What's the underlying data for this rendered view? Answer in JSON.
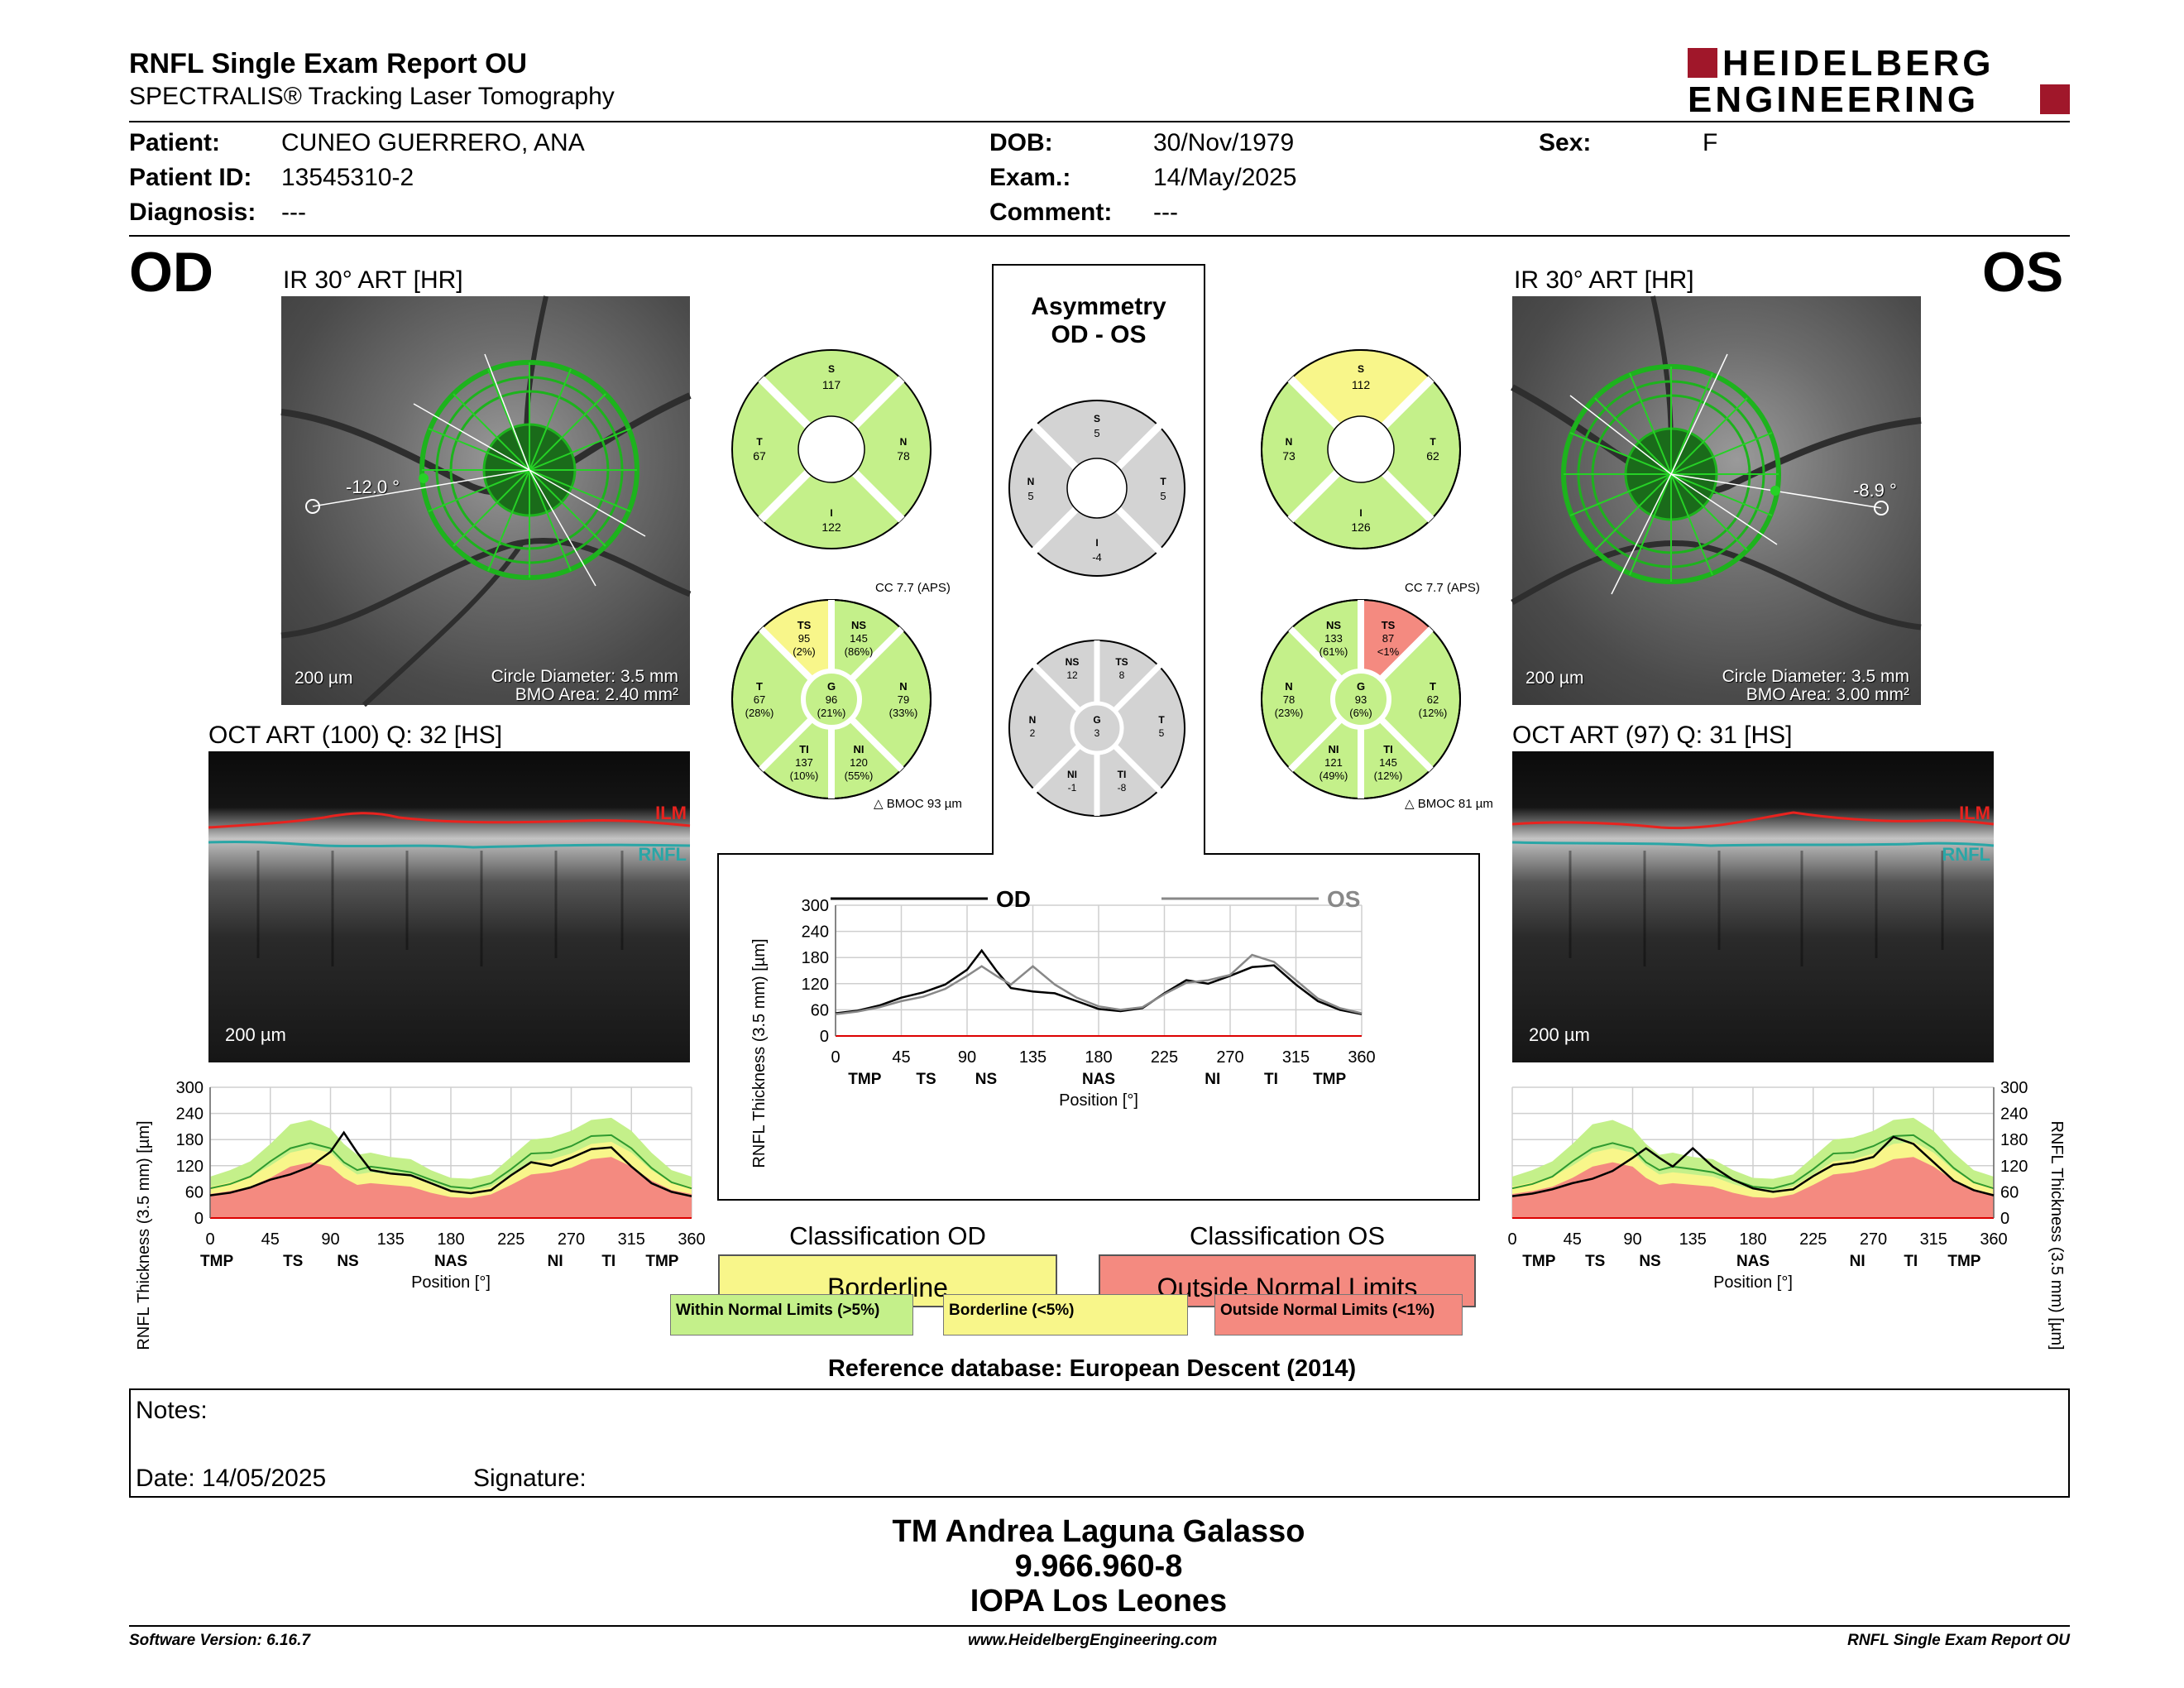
{
  "header": {
    "title": "RNFL Single Exam Report OU",
    "subtitle": "SPECTRALIS® Tracking Laser Tomography",
    "logo_line1": "HEIDELBERG",
    "logo_line2": "ENGINEERING"
  },
  "patient": {
    "patient_label": "Patient:",
    "patient_value": "CUNEO GUERRERO, ANA",
    "id_label": "Patient ID:",
    "id_value": "13545310-2",
    "diag_label": "Diagnosis:",
    "diag_value": "---",
    "dob_label": "DOB:",
    "dob_value": "30/Nov/1979",
    "exam_label": "Exam.:",
    "exam_value": "14/May/2025",
    "comment_label": "Comment:",
    "comment_value": "---",
    "sex_label": "Sex:",
    "sex_value": "F"
  },
  "od": {
    "tag": "OD",
    "ir_title": "IR 30° ART [HR]",
    "angle": "-12.0 °",
    "scale": "200 µm",
    "circle_diameter": "Circle Diameter: 3.5 mm",
    "bmo_area": "BMO Area: 2.40 mm²",
    "oct_title": "OCT ART (100) Q: 32 [HS]",
    "oct_scale": "200 µm",
    "ilm": "ILM",
    "rnfl": "RNFL",
    "sectors4": {
      "S": "117",
      "T": "67",
      "N": "78",
      "I": "122"
    },
    "cc": "CC 7.7 (APS)",
    "bmoc": "BMOC 93 µm",
    "sectors6": {
      "TS": [
        "TS",
        "95",
        "(2%)"
      ],
      "NS": [
        "NS",
        "145",
        "(86%)"
      ],
      "T": [
        "T",
        "67",
        "(28%)"
      ],
      "G": [
        "G",
        "96",
        "(21%)"
      ],
      "N": [
        "N",
        "79",
        "(33%)"
      ],
      "TI": [
        "TI",
        "137",
        "(10%)"
      ],
      "NI": [
        "NI",
        "120",
        "(55%)"
      ]
    },
    "classification_title": "Classification OD",
    "classification": "Borderline"
  },
  "os": {
    "tag": "OS",
    "ir_title": "IR 30° ART [HR]",
    "angle": "-8.9 °",
    "scale": "200 µm",
    "circle_diameter": "Circle Diameter: 3.5 mm",
    "bmo_area": "BMO Area: 3.00 mm²",
    "oct_title": "OCT ART (97) Q: 31 [HS]",
    "oct_scale": "200 µm",
    "ilm": "ILM",
    "rnfl": "RNFL",
    "sectors4": {
      "S": "112",
      "N": "73",
      "T": "62",
      "I": "126"
    },
    "cc": "CC 7.7 (APS)",
    "bmoc": "BMOC 81 µm",
    "sectors6": {
      "NS": [
        "NS",
        "133",
        "(61%)"
      ],
      "TS": [
        "TS",
        "87",
        "<1%"
      ],
      "N": [
        "N",
        "78",
        "(23%)"
      ],
      "G": [
        "G",
        "93",
        "(6%)"
      ],
      "T": [
        "T",
        "62",
        "(12%)"
      ],
      "NI": [
        "NI",
        "121",
        "(49%)"
      ],
      "TI": [
        "TI",
        "145",
        "(12%)"
      ]
    },
    "classification_title": "Classification OS",
    "classification": "Outside Normal Limits"
  },
  "asymmetry": {
    "title1": "Asymmetry",
    "title2": "OD - OS",
    "sectors4": {
      "S": "5",
      "N": "5",
      "T": "5",
      "I": "-4"
    },
    "sectors6": {
      "NS": [
        "NS",
        "12"
      ],
      "TS": [
        "TS",
        "8"
      ],
      "N": [
        "N",
        "2"
      ],
      "G": [
        "G",
        "3"
      ],
      "T": [
        "T",
        "5"
      ],
      "NI": [
        "NI",
        "-1"
      ],
      "TI": [
        "TI",
        "-8"
      ]
    }
  },
  "chart_data": [
    {
      "type": "line",
      "name": "od-profile",
      "title": "",
      "xlabel": "Position [°]",
      "ylabel": "RNFL Thickness (3.5 mm) [µm]",
      "xlim": [
        0,
        360
      ],
      "ylim": [
        0,
        300
      ],
      "xticks": [
        "0",
        "45",
        "90",
        "135",
        "180",
        "225",
        "270",
        "315",
        "360"
      ],
      "yticks": [
        "0",
        "60",
        "120",
        "180",
        "240",
        "300"
      ],
      "sector_labels": [
        "TMP",
        "TS",
        "NS",
        "NAS",
        "NI",
        "TI",
        "TMP"
      ],
      "sector_positions": [
        5,
        62,
        103,
        180,
        258,
        298,
        338
      ],
      "x": [
        0,
        15,
        30,
        45,
        60,
        75,
        90,
        100,
        110,
        120,
        135,
        150,
        165,
        180,
        195,
        210,
        225,
        240,
        255,
        270,
        285,
        300,
        315,
        330,
        345,
        360
      ],
      "series": [
        {
          "name": "OD",
          "values": [
            52,
            58,
            70,
            88,
            100,
            118,
            152,
            196,
            150,
            110,
            102,
            98,
            80,
            62,
            57,
            64,
            98,
            128,
            120,
            138,
            158,
            162,
            118,
            80,
            60,
            50
          ]
        }
      ],
      "band_green_upper": [
        95,
        110,
        130,
        170,
        215,
        225,
        205,
        170,
        145,
        150,
        140,
        135,
        110,
        92,
        90,
        100,
        140,
        180,
        185,
        200,
        225,
        230,
        200,
        150,
        110,
        95
      ],
      "band_yellow_upper": [
        72,
        82,
        95,
        120,
        150,
        160,
        150,
        120,
        100,
        105,
        100,
        95,
        78,
        65,
        62,
        72,
        100,
        130,
        135,
        148,
        170,
        175,
        150,
        110,
        82,
        72
      ],
      "band_red_upper": [
        55,
        62,
        72,
        92,
        118,
        128,
        118,
        92,
        76,
        80,
        76,
        72,
        58,
        48,
        46,
        54,
        76,
        100,
        105,
        115,
        135,
        140,
        118,
        86,
        64,
        55
      ],
      "mean_line": [
        68,
        78,
        95,
        130,
        160,
        172,
        160,
        128,
        110,
        118,
        112,
        105,
        88,
        72,
        68,
        80,
        112,
        148,
        150,
        165,
        188,
        190,
        160,
        115,
        82,
        68
      ]
    },
    {
      "type": "line",
      "name": "asymmetry-profile",
      "title": "",
      "xlabel": "Position [°]",
      "ylabel": "RNFL Thickness (3.5 mm) [µm]",
      "xlim": [
        0,
        360
      ],
      "ylim": [
        0,
        300
      ],
      "xticks": [
        "0",
        "45",
        "90",
        "135",
        "180",
        "225",
        "270",
        "315",
        "360"
      ],
      "yticks": [
        "0",
        "60",
        "120",
        "180",
        "240",
        "300"
      ],
      "sector_labels": [
        "TMP",
        "TS",
        "NS",
        "NAS",
        "NI",
        "TI",
        "TMP"
      ],
      "sector_positions": [
        20,
        62,
        103,
        180,
        258,
        298,
        338
      ],
      "x": [
        0,
        15,
        30,
        45,
        60,
        75,
        90,
        100,
        110,
        120,
        135,
        150,
        165,
        180,
        195,
        210,
        225,
        240,
        255,
        270,
        285,
        300,
        315,
        330,
        345,
        360
      ],
      "series": [
        {
          "name": "OD",
          "values": [
            52,
            58,
            70,
            88,
            100,
            118,
            152,
            196,
            150,
            110,
            102,
            98,
            80,
            62,
            57,
            64,
            98,
            128,
            120,
            138,
            158,
            162,
            118,
            80,
            60,
            50
          ]
        },
        {
          "name": "OS",
          "values": [
            50,
            56,
            66,
            80,
            90,
            108,
            138,
            160,
            138,
            118,
            160,
            118,
            88,
            68,
            60,
            66,
            96,
            122,
            128,
            140,
            186,
            170,
            128,
            86,
            64,
            52
          ]
        }
      ]
    },
    {
      "type": "line",
      "name": "os-profile",
      "title": "",
      "xlabel": "Position [°]",
      "ylabel": "RNFL Thickness (3.5 mm) [µm]",
      "xlim": [
        0,
        360
      ],
      "ylim": [
        0,
        300
      ],
      "xticks": [
        "0",
        "45",
        "90",
        "135",
        "180",
        "225",
        "270",
        "315",
        "360"
      ],
      "yticks": [
        "0",
        "60",
        "120",
        "180",
        "240",
        "300"
      ],
      "sector_labels": [
        "TMP",
        "TS",
        "NS",
        "NAS",
        "NI",
        "TI",
        "TMP"
      ],
      "sector_positions": [
        20,
        62,
        103,
        180,
        258,
        298,
        338
      ],
      "x": [
        0,
        15,
        30,
        45,
        60,
        75,
        90,
        100,
        110,
        120,
        135,
        150,
        165,
        180,
        195,
        210,
        225,
        240,
        255,
        270,
        285,
        300,
        315,
        330,
        345,
        360
      ],
      "series": [
        {
          "name": "OS",
          "values": [
            50,
            56,
            66,
            80,
            90,
            108,
            138,
            160,
            138,
            118,
            160,
            118,
            88,
            68,
            60,
            66,
            96,
            122,
            128,
            140,
            186,
            170,
            128,
            86,
            64,
            52
          ]
        }
      ],
      "band_green_upper": [
        95,
        110,
        130,
        170,
        215,
        225,
        205,
        170,
        145,
        150,
        140,
        135,
        110,
        92,
        90,
        100,
        140,
        180,
        185,
        200,
        225,
        230,
        200,
        150,
        110,
        95
      ],
      "band_yellow_upper": [
        72,
        82,
        95,
        120,
        150,
        160,
        150,
        120,
        100,
        105,
        100,
        95,
        78,
        65,
        62,
        72,
        100,
        130,
        135,
        148,
        170,
        175,
        150,
        110,
        82,
        72
      ],
      "band_red_upper": [
        55,
        62,
        72,
        92,
        118,
        128,
        118,
        92,
        76,
        80,
        76,
        72,
        58,
        48,
        46,
        54,
        76,
        100,
        105,
        115,
        135,
        140,
        118,
        86,
        64,
        55
      ],
      "mean_line": [
        68,
        78,
        95,
        130,
        160,
        172,
        160,
        128,
        110,
        118,
        112,
        105,
        88,
        72,
        68,
        80,
        112,
        148,
        150,
        165,
        188,
        190,
        160,
        115,
        82,
        68
      ]
    }
  ],
  "legend": {
    "within": "Within Normal Limits (>5%)",
    "borderline": "Borderline (<5%)",
    "outside": "Outside Normal Limits (<1%)"
  },
  "reference": "Reference database: European Descent (2014)",
  "notes": {
    "label": "Notes:",
    "date": "Date: 14/05/2025",
    "signature": "Signature:"
  },
  "signer": {
    "name": "TM Andrea Laguna Galasso",
    "id": "9.966.960-8",
    "place": "IOPA Los Leones"
  },
  "footer": {
    "software": "Software Version: 6.16.7",
    "website": "www.HeidelbergEngineering.com",
    "report": "RNFL Single Exam Report OU"
  },
  "colors": {
    "within": "#c4f08a",
    "borderline": "#f8f68a",
    "outside": "#f48a80",
    "asym": "#d3d3d3",
    "logo": "#a0172a"
  }
}
